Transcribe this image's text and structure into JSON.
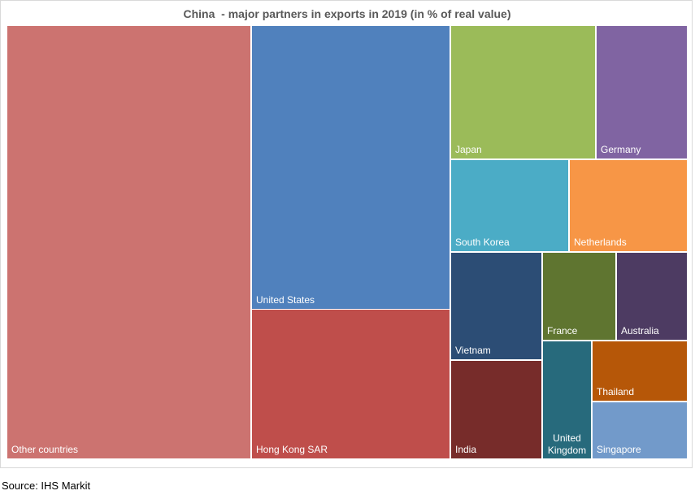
{
  "chart_data": {
    "type": "treemap",
    "title": "China  - major partners in exports in 2019 (in % of real value)",
    "series": [
      {
        "name": "Other countries",
        "color": "#cc7370"
      },
      {
        "name": "United States",
        "color": "#5081bd"
      },
      {
        "name": "Hong Kong SAR",
        "color": "#bf4e4b"
      },
      {
        "name": "Japan",
        "color": "#9bbb59"
      },
      {
        "name": "Germany",
        "color": "#8064a2"
      },
      {
        "name": "South Korea",
        "color": "#4bacc6"
      },
      {
        "name": "Netherlands",
        "color": "#f79646"
      },
      {
        "name": "Vietnam",
        "color": "#2c4d75"
      },
      {
        "name": "India",
        "color": "#772c2a"
      },
      {
        "name": "France",
        "color": "#5f7530"
      },
      {
        "name": "Australia",
        "color": "#4d3b62"
      },
      {
        "name": "United Kingdom",
        "label_lines": [
          "United",
          "Kingdom"
        ],
        "color": "#276a7c"
      },
      {
        "name": "Thailand",
        "color": "#b65708"
      },
      {
        "name": "Singapore",
        "color": "#729aca"
      }
    ]
  },
  "source": "Source: IHS Markit"
}
